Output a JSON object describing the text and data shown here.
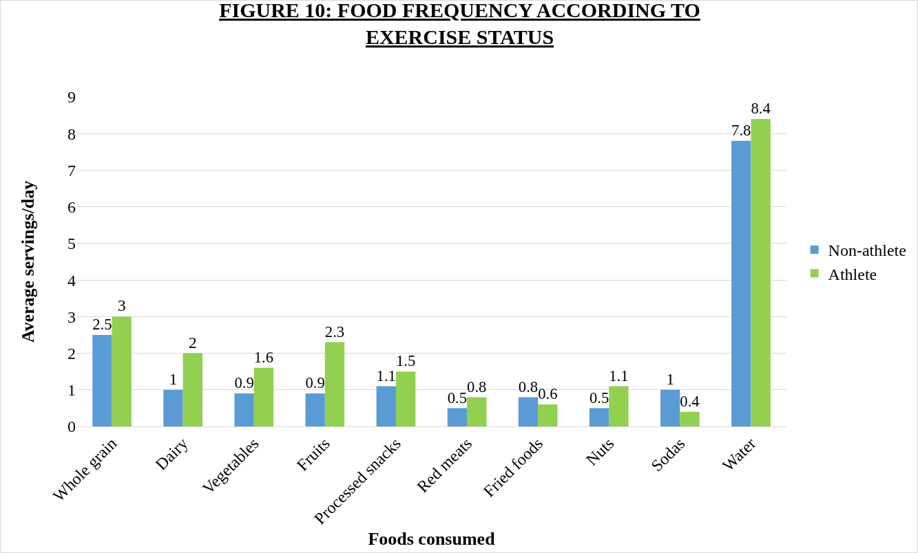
{
  "chart_data": {
    "type": "bar",
    "title": "FIGURE 10: FOOD FREQUENCY ACCORDING TO EXERCISE STATUS",
    "xlabel": "Foods consumed",
    "ylabel": "Average servings/day",
    "categories": [
      "Whole grain",
      "Dairy",
      "Vegetables",
      "Fruits",
      "Processed snacks",
      "Red meats",
      "Fried foods",
      "Nuts",
      "Sodas",
      "Water"
    ],
    "series": [
      {
        "name": "Non-athlete",
        "color": "#5b9bd5",
        "values": [
          2.5,
          1,
          0.9,
          0.9,
          1.1,
          0.5,
          0.8,
          0.5,
          1,
          7.8
        ]
      },
      {
        "name": "Athlete",
        "color": "#92d050",
        "values": [
          3,
          2,
          1.6,
          2.3,
          1.5,
          0.8,
          0.6,
          1.1,
          0.4,
          8.4
        ]
      }
    ],
    "ylim": [
      0,
      9
    ],
    "yticks": [
      0,
      1,
      2,
      3,
      4,
      5,
      6,
      7,
      8,
      9
    ],
    "grid": "y",
    "legend": "right",
    "data_labels": true
  }
}
